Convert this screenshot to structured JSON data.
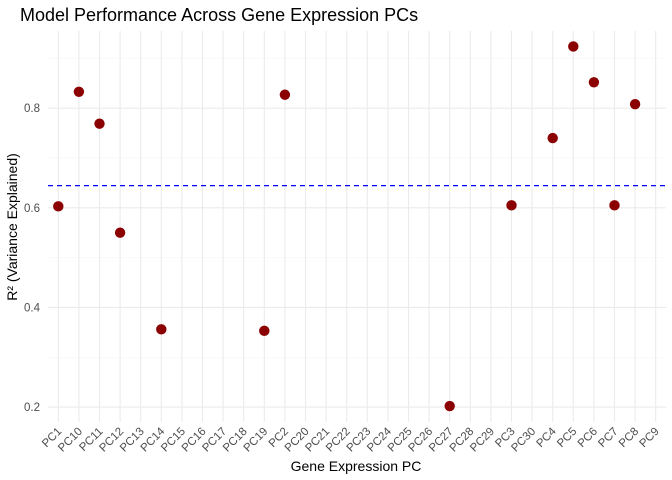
{
  "chart_data": {
    "type": "scatter",
    "title": "Model Performance Across Gene Expression PCs",
    "xlabel": "Gene Expression PC",
    "ylabel": "R² (Variance Explained)",
    "categories": [
      "PC1",
      "PC10",
      "PC11",
      "PC12",
      "PC13",
      "PC14",
      "PC15",
      "PC16",
      "PC17",
      "PC18",
      "PC19",
      "PC2",
      "PC20",
      "PC21",
      "PC22",
      "PC23",
      "PC24",
      "PC25",
      "PC26",
      "PC27",
      "PC28",
      "PC29",
      "PC3",
      "PC30",
      "PC4",
      "PC5",
      "PC6",
      "PC7",
      "PC8",
      "PC9"
    ],
    "points": [
      {
        "x": "PC1",
        "y": 0.603
      },
      {
        "x": "PC10",
        "y": 0.833
      },
      {
        "x": "PC11",
        "y": 0.769
      },
      {
        "x": "PC12",
        "y": 0.55
      },
      {
        "x": "PC14",
        "y": 0.356
      },
      {
        "x": "PC19",
        "y": 0.353
      },
      {
        "x": "PC2",
        "y": 0.827
      },
      {
        "x": "PC27",
        "y": 0.202
      },
      {
        "x": "PC3",
        "y": 0.605
      },
      {
        "x": "PC4",
        "y": 0.74
      },
      {
        "x": "PC5",
        "y": 0.924
      },
      {
        "x": "PC6",
        "y": 0.852
      },
      {
        "x": "PC7",
        "y": 0.605
      },
      {
        "x": "PC8",
        "y": 0.808
      }
    ],
    "reference_line": {
      "y": 0.6445,
      "style": "dashed",
      "color": "#0000ff"
    },
    "point_color": "#8b0000",
    "ylim": [
      0.17,
      0.955
    ],
    "yticks": [
      0.2,
      0.4,
      0.6,
      0.8
    ],
    "ytick_labels": [
      "0.2",
      "0.4",
      "0.6",
      "0.8"
    ],
    "grid": true,
    "theme": "minimal"
  }
}
